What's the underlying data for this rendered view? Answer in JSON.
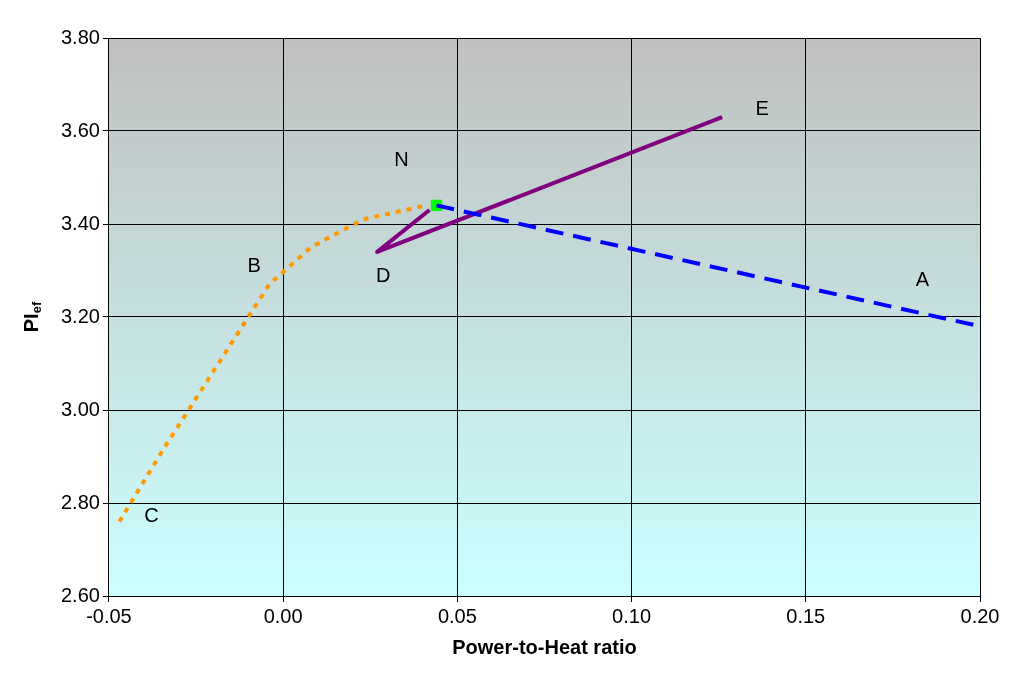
{
  "chart_data": {
    "type": "line",
    "xlabel": "Power-to-Heat ratio",
    "ylabel": "PI$_{ef}$",
    "xlim": [
      -0.05,
      0.2
    ],
    "ylim": [
      2.6,
      3.8
    ],
    "xticks": [
      {
        "value": -0.05,
        "label": "-0.05"
      },
      {
        "value": 0,
        "label": "0.00"
      },
      {
        "value": 0.05,
        "label": "0.05"
      },
      {
        "value": 0.1,
        "label": "0.10"
      },
      {
        "value": 0.15,
        "label": "0.15"
      },
      {
        "value": 0.2,
        "label": "0.20"
      }
    ],
    "yticks": [
      {
        "value": 2.6,
        "label": "2.60"
      },
      {
        "value": 2.8,
        "label": "2.80"
      },
      {
        "value": 3.0,
        "label": "3.00"
      },
      {
        "value": 3.2,
        "label": "3.20"
      },
      {
        "value": 3.4,
        "label": "3.40"
      },
      {
        "value": 3.6,
        "label": "3.60"
      },
      {
        "value": 3.8,
        "label": "3.80"
      }
    ],
    "grid": true,
    "legend": false,
    "series": [
      {
        "color": "#ff9900",
        "line_style": "dotted",
        "marker": "none",
        "x": [
          -0.047,
          -0.034,
          -0.016,
          -0.004,
          0.008,
          0.023,
          0.041
        ],
        "values": [
          2.76,
          2.92,
          3.13,
          3.27,
          3.35,
          3.41,
          3.44
        ]
      },
      {
        "color": "#0000ff",
        "line_style": "dashed",
        "marker": "none",
        "x": [
          0.044,
          0.2
        ],
        "values": [
          3.44,
          3.18
        ]
      },
      {
        "color": "#800080",
        "line_style": "solid",
        "marker": "none",
        "x": [
          0.042,
          0.027,
          0.126
        ],
        "values": [
          3.43,
          3.34,
          3.63
        ]
      },
      {
        "type": "scatter",
        "color": "#00ff00",
        "marker": "square",
        "x": [
          0.044
        ],
        "values": [
          3.44
        ]
      }
    ],
    "annotations": [
      {
        "text": "A",
        "x": 0.18,
        "y": 3.213
      },
      {
        "text": "B",
        "x": -0.004,
        "y": 3.27
      },
      {
        "text": "C",
        "x": -0.047,
        "y": 2.76
      },
      {
        "text": "D",
        "x": 0.027,
        "y": 3.34
      },
      {
        "text": "E",
        "x": 0.126,
        "y": 3.63
      },
      {
        "text": "N",
        "x": 0.044,
        "y": 3.44
      }
    ]
  }
}
